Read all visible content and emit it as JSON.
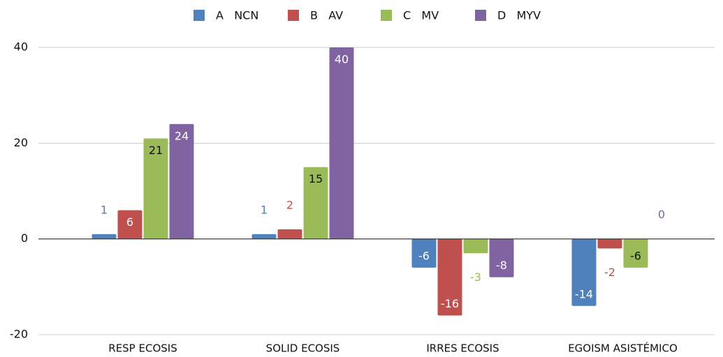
{
  "chart_data": {
    "type": "bar",
    "categories": [
      "RESP ECOSIS",
      "SOLID ECOSIS",
      "IRRES ECOSIS",
      "EGOISM ASISTÉMICO"
    ],
    "series": [
      {
        "name": "A   NCN",
        "color": "#4f81bd",
        "values": [
          1,
          1,
          -6,
          -14
        ]
      },
      {
        "name": "B   AV",
        "color": "#c0504d",
        "values": [
          6,
          2,
          -16,
          -2
        ]
      },
      {
        "name": "C   MV",
        "color": "#9bbb59",
        "values": [
          21,
          15,
          -3,
          -6
        ]
      },
      {
        "name": "D   MYV",
        "color": "#8064a2",
        "values": [
          24,
          40,
          -8,
          0
        ]
      }
    ],
    "ylim": [
      -20,
      40
    ],
    "yticks": [
      -20,
      0,
      20,
      40
    ],
    "grid": true,
    "legend": "top"
  }
}
